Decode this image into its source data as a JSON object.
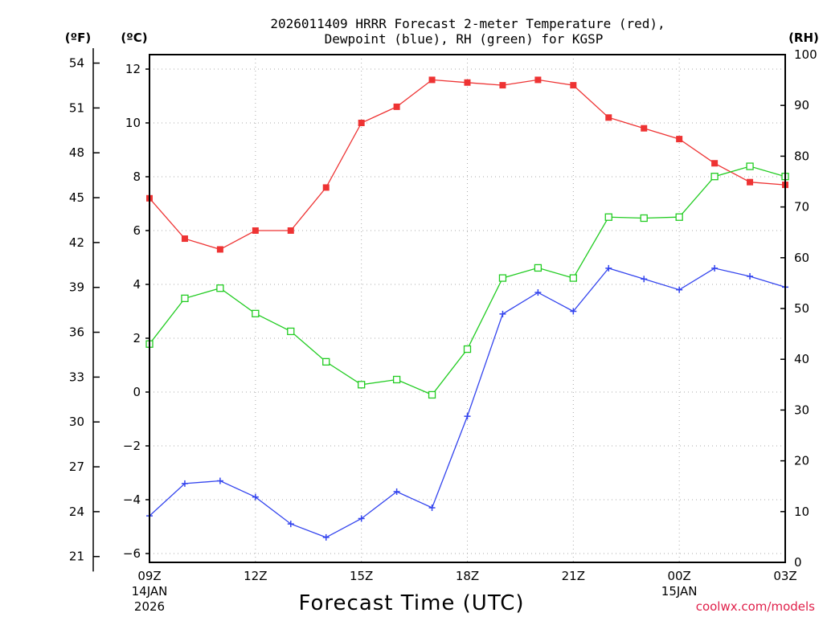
{
  "chart_data": {
    "type": "line",
    "title_line1": "2026011409 HRRR Forecast 2-meter Temperature (red),",
    "title_line2": "Dewpoint (blue), RH (green) for KGSP",
    "xlabel": "Forecast Time (UTC)",
    "credit": "coolwx.com/models",
    "units": {
      "left": "(ºF)",
      "left_inner": "(ºC)",
      "right": "(RH)"
    },
    "y_c_range": [
      -6.4,
      12.6
    ],
    "y_c_ticks": [
      "12",
      "10",
      "8",
      "6",
      "4",
      "2",
      "0",
      "−2",
      "−4",
      "−6"
    ],
    "y_c_tick_values": [
      12,
      10,
      8,
      6,
      4,
      2,
      0,
      -2,
      -4,
      -6
    ],
    "y_f_ticks": [
      "54",
      "51",
      "48",
      "45",
      "42",
      "39",
      "36",
      "33",
      "30",
      "27",
      "24",
      "21"
    ],
    "y_f_tick_values": [
      54,
      51,
      48,
      45,
      42,
      39,
      36,
      33,
      30,
      27,
      24,
      21
    ],
    "y_rh_range": [
      0,
      100
    ],
    "y_rh_ticks": [
      "100",
      "90",
      "80",
      "70",
      "60",
      "50",
      "40",
      "30",
      "20",
      "10",
      "0"
    ],
    "y_rh_tick_values": [
      100,
      90,
      80,
      70,
      60,
      50,
      40,
      30,
      20,
      10,
      0
    ],
    "x_hours": [
      0,
      1,
      2,
      3,
      4,
      5,
      6,
      7,
      8,
      9,
      10,
      11,
      12,
      13,
      14,
      15,
      16,
      17,
      18
    ],
    "x_ticks": [
      {
        "hour": 0,
        "label": "09Z",
        "sub1": "14JAN",
        "sub2": "2026"
      },
      {
        "hour": 3,
        "label": "12Z"
      },
      {
        "hour": 6,
        "label": "15Z"
      },
      {
        "hour": 9,
        "label": "18Z"
      },
      {
        "hour": 12,
        "label": "21Z"
      },
      {
        "hour": 15,
        "label": "00Z",
        "sub1": "15JAN"
      },
      {
        "hour": 18,
        "label": "03Z"
      }
    ],
    "series": [
      {
        "name": "Temperature",
        "axis": "c",
        "color": "#ee3333",
        "marker": "square-filled",
        "values": [
          7.2,
          5.7,
          5.3,
          6.0,
          6.0,
          7.6,
          10.0,
          10.6,
          11.6,
          11.5,
          11.4,
          11.6,
          11.4,
          10.2,
          9.8,
          9.4,
          8.5,
          7.8,
          7.7
        ]
      },
      {
        "name": "Dewpoint",
        "axis": "c",
        "color": "#3344ee",
        "marker": "plus",
        "values": [
          -4.6,
          -3.4,
          -3.3,
          -3.9,
          -4.9,
          -5.4,
          -4.7,
          -3.7,
          -4.3,
          -0.9,
          2.9,
          3.7,
          3.0,
          4.6,
          4.2,
          3.8,
          4.6,
          4.3,
          3.9
        ]
      },
      {
        "name": "RH",
        "axis": "rh",
        "color": "#22cc22",
        "marker": "square-open",
        "values": [
          43.0,
          52.0,
          54.0,
          49.0,
          45.5,
          39.5,
          35.0,
          36.0,
          33.0,
          42.0,
          56.0,
          58.0,
          56.0,
          68.0,
          67.8,
          68.0,
          76.0,
          78.0,
          76.0
        ]
      }
    ]
  }
}
